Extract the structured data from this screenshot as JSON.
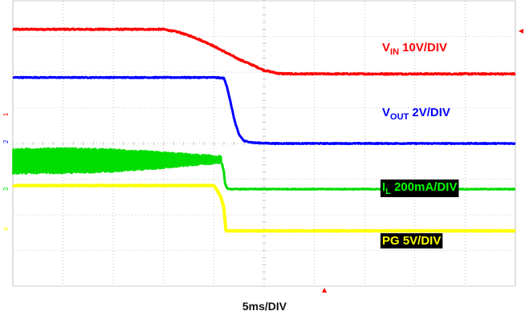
{
  "chart_data": {
    "type": "line",
    "title": "",
    "xlabel": "5ms/DIV",
    "ylabel": "",
    "grid": true,
    "x_divisions": 10,
    "y_divisions": 8,
    "x_unit": "ms",
    "ms_per_div": 5,
    "grid_major_color": "#9a9a9a",
    "grid_minor_color": "#bbbbbb",
    "series": [
      {
        "name": "VIN 10V/DIV",
        "label_main": "V",
        "label_sub": "IN",
        "label_rest": " 10V/DIV",
        "color": "#ff0000",
        "label_bg": "",
        "label_color": "#ff0000",
        "channel_tag": "1",
        "marker_div": 4.76,
        "noise": 0.035,
        "width": 3,
        "x": [
          0,
          5,
          10,
          15,
          16.5,
          18,
          19.5,
          21,
          22.5,
          24,
          25,
          26.5,
          28,
          30,
          35,
          40,
          45,
          50
        ],
        "y": [
          7.2,
          7.2,
          7.2,
          7.2,
          7.12,
          6.98,
          6.8,
          6.58,
          6.36,
          6.18,
          6.05,
          5.96,
          5.95,
          5.95,
          5.95,
          5.95,
          5.95,
          5.95
        ]
      },
      {
        "name": "VOUT 2V/DIV",
        "label_main": "V",
        "label_sub": "OUT",
        "label_rest": " 2V/DIV",
        "color": "#0000ff",
        "label_bg": "",
        "label_color": "#0000ff",
        "channel_tag": "2",
        "marker_div": 4.0,
        "noise": 0.025,
        "width": 3,
        "x": [
          0,
          5,
          10,
          15,
          20,
          21,
          21.3,
          21.7,
          22.1,
          22.5,
          23,
          24,
          26,
          30,
          40,
          50
        ],
        "y": [
          5.85,
          5.85,
          5.85,
          5.85,
          5.85,
          5.83,
          5.6,
          5.1,
          4.6,
          4.25,
          4.07,
          4.02,
          4.0,
          4.0,
          4.0,
          4.0
        ]
      },
      {
        "name": "IL 200mA/DIV",
        "label_main": "I",
        "label_sub": "L",
        "label_rest": " 200mA/DIV",
        "color": "#00dd00",
        "label_bg": "#000000",
        "label_color": "#00ff00",
        "channel_tag": "3",
        "marker_div": 2.67,
        "noise": 0.02,
        "width": 3,
        "band_end_x": 20.8,
        "band_top": [
          3.85,
          3.88,
          3.84,
          3.76,
          3.65
        ],
        "band_bottom": [
          3.15,
          3.16,
          3.2,
          3.3,
          3.45
        ],
        "band_x": [
          0,
          5,
          10,
          15,
          20.8
        ],
        "x": [
          20.8,
          21.0,
          21.1,
          21.3,
          21.5,
          22,
          30,
          40,
          50
        ],
        "y": [
          3.45,
          3.2,
          2.9,
          2.75,
          2.72,
          2.72,
          2.72,
          2.72,
          2.72
        ]
      },
      {
        "name": "PG 5V/DIV",
        "label_main": "PG 5V/DIV",
        "label_sub": "",
        "label_rest": "",
        "color": "#ffff00",
        "label_bg": "#000000",
        "label_color": "#ffff00",
        "channel_tag": "4",
        "marker_div": 1.55,
        "noise": 0.015,
        "width": 4,
        "x": [
          0,
          5,
          10,
          15,
          20,
          20.3,
          20.7,
          21,
          21.2,
          22,
          30,
          40,
          50
        ],
        "y": [
          2.82,
          2.82,
          2.82,
          2.82,
          2.82,
          2.7,
          2.5,
          2.2,
          1.55,
          1.55,
          1.55,
          1.55,
          1.55
        ]
      }
    ],
    "trigger_marker_x_div": 6.2,
    "right_marker_y_div": 7.15
  }
}
